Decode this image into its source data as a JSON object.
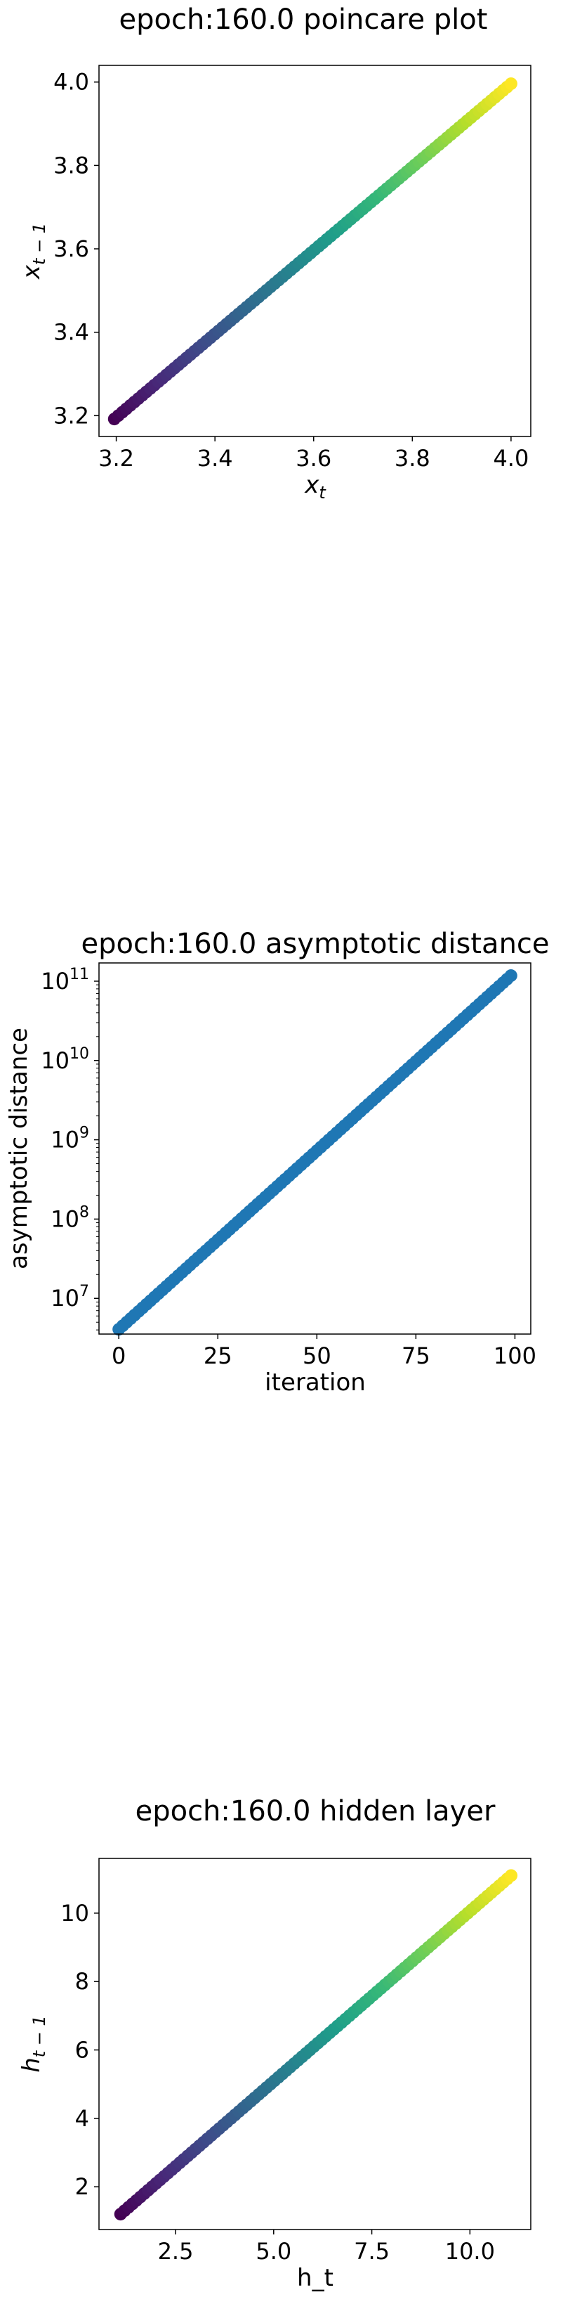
{
  "chart_data": [
    {
      "type": "scatter",
      "title": "epoch:160.0 poincare plot",
      "xlabel_base": "x",
      "xlabel_sub": "t",
      "ylabel_base": "x",
      "ylabel_sub": "t − 1",
      "xlim": [
        3.165,
        4.04
      ],
      "ylim": [
        3.15,
        4.04
      ],
      "xticks": [
        3.2,
        3.4,
        3.6,
        3.8,
        4.0
      ],
      "xtick_labels": [
        "3.2",
        "3.4",
        "3.6",
        "3.8",
        "4.0"
      ],
      "yticks": [
        3.2,
        3.4,
        3.6,
        3.8,
        4.0
      ],
      "ytick_labels": [
        "3.2",
        "3.4",
        "3.6",
        "3.8",
        "4.0"
      ],
      "colormap": "viridis",
      "series": [
        {
          "x_start": 3.196,
          "x_end": 4.0,
          "y_start": 3.192,
          "y_end": 3.996,
          "n_points": 100
        }
      ],
      "grid": false
    },
    {
      "type": "scatter",
      "title": "epoch:160.0 asymptotic distance",
      "xlabel": "iteration",
      "ylabel": "asymptotic distance",
      "yscale": "log",
      "xlim": [
        -5,
        104
      ],
      "ylim_log10": [
        6.55,
        11.23
      ],
      "xticks": [
        0,
        25,
        50,
        75,
        100
      ],
      "xtick_labels": [
        "0",
        "25",
        "50",
        "75",
        "100"
      ],
      "yticks_log10": [
        7,
        8,
        9,
        10,
        11
      ],
      "ytick_labels": [
        "7",
        "8",
        "9",
        "10",
        "11"
      ],
      "ytick_base": "10",
      "color": "#1f77b4",
      "series": [
        {
          "x_start": 0,
          "x_end": 99,
          "log10_y_start": 6.61,
          "log10_y_end": 11.07,
          "n_points": 100
        }
      ],
      "grid": false
    },
    {
      "type": "scatter",
      "title": "epoch:160.0 hidden layer",
      "xlabel": "h_t",
      "ylabel_base": "h",
      "ylabel_sub": "t − 1",
      "xlim": [
        0.55,
        11.55
      ],
      "ylim": [
        0.75,
        11.6
      ],
      "xticks": [
        2.5,
        5.0,
        7.5,
        10.0
      ],
      "xtick_labels": [
        "2.5",
        "5.0",
        "7.5",
        "10.0"
      ],
      "yticks": [
        2,
        4,
        6,
        8,
        10
      ],
      "ytick_labels": [
        "2",
        "4",
        "6",
        "8",
        "10"
      ],
      "colormap": "viridis",
      "series": [
        {
          "x_start": 1.1,
          "x_end": 11.05,
          "y_start": 1.2,
          "y_end": 11.1,
          "n_points": 100
        }
      ],
      "grid": false
    }
  ]
}
